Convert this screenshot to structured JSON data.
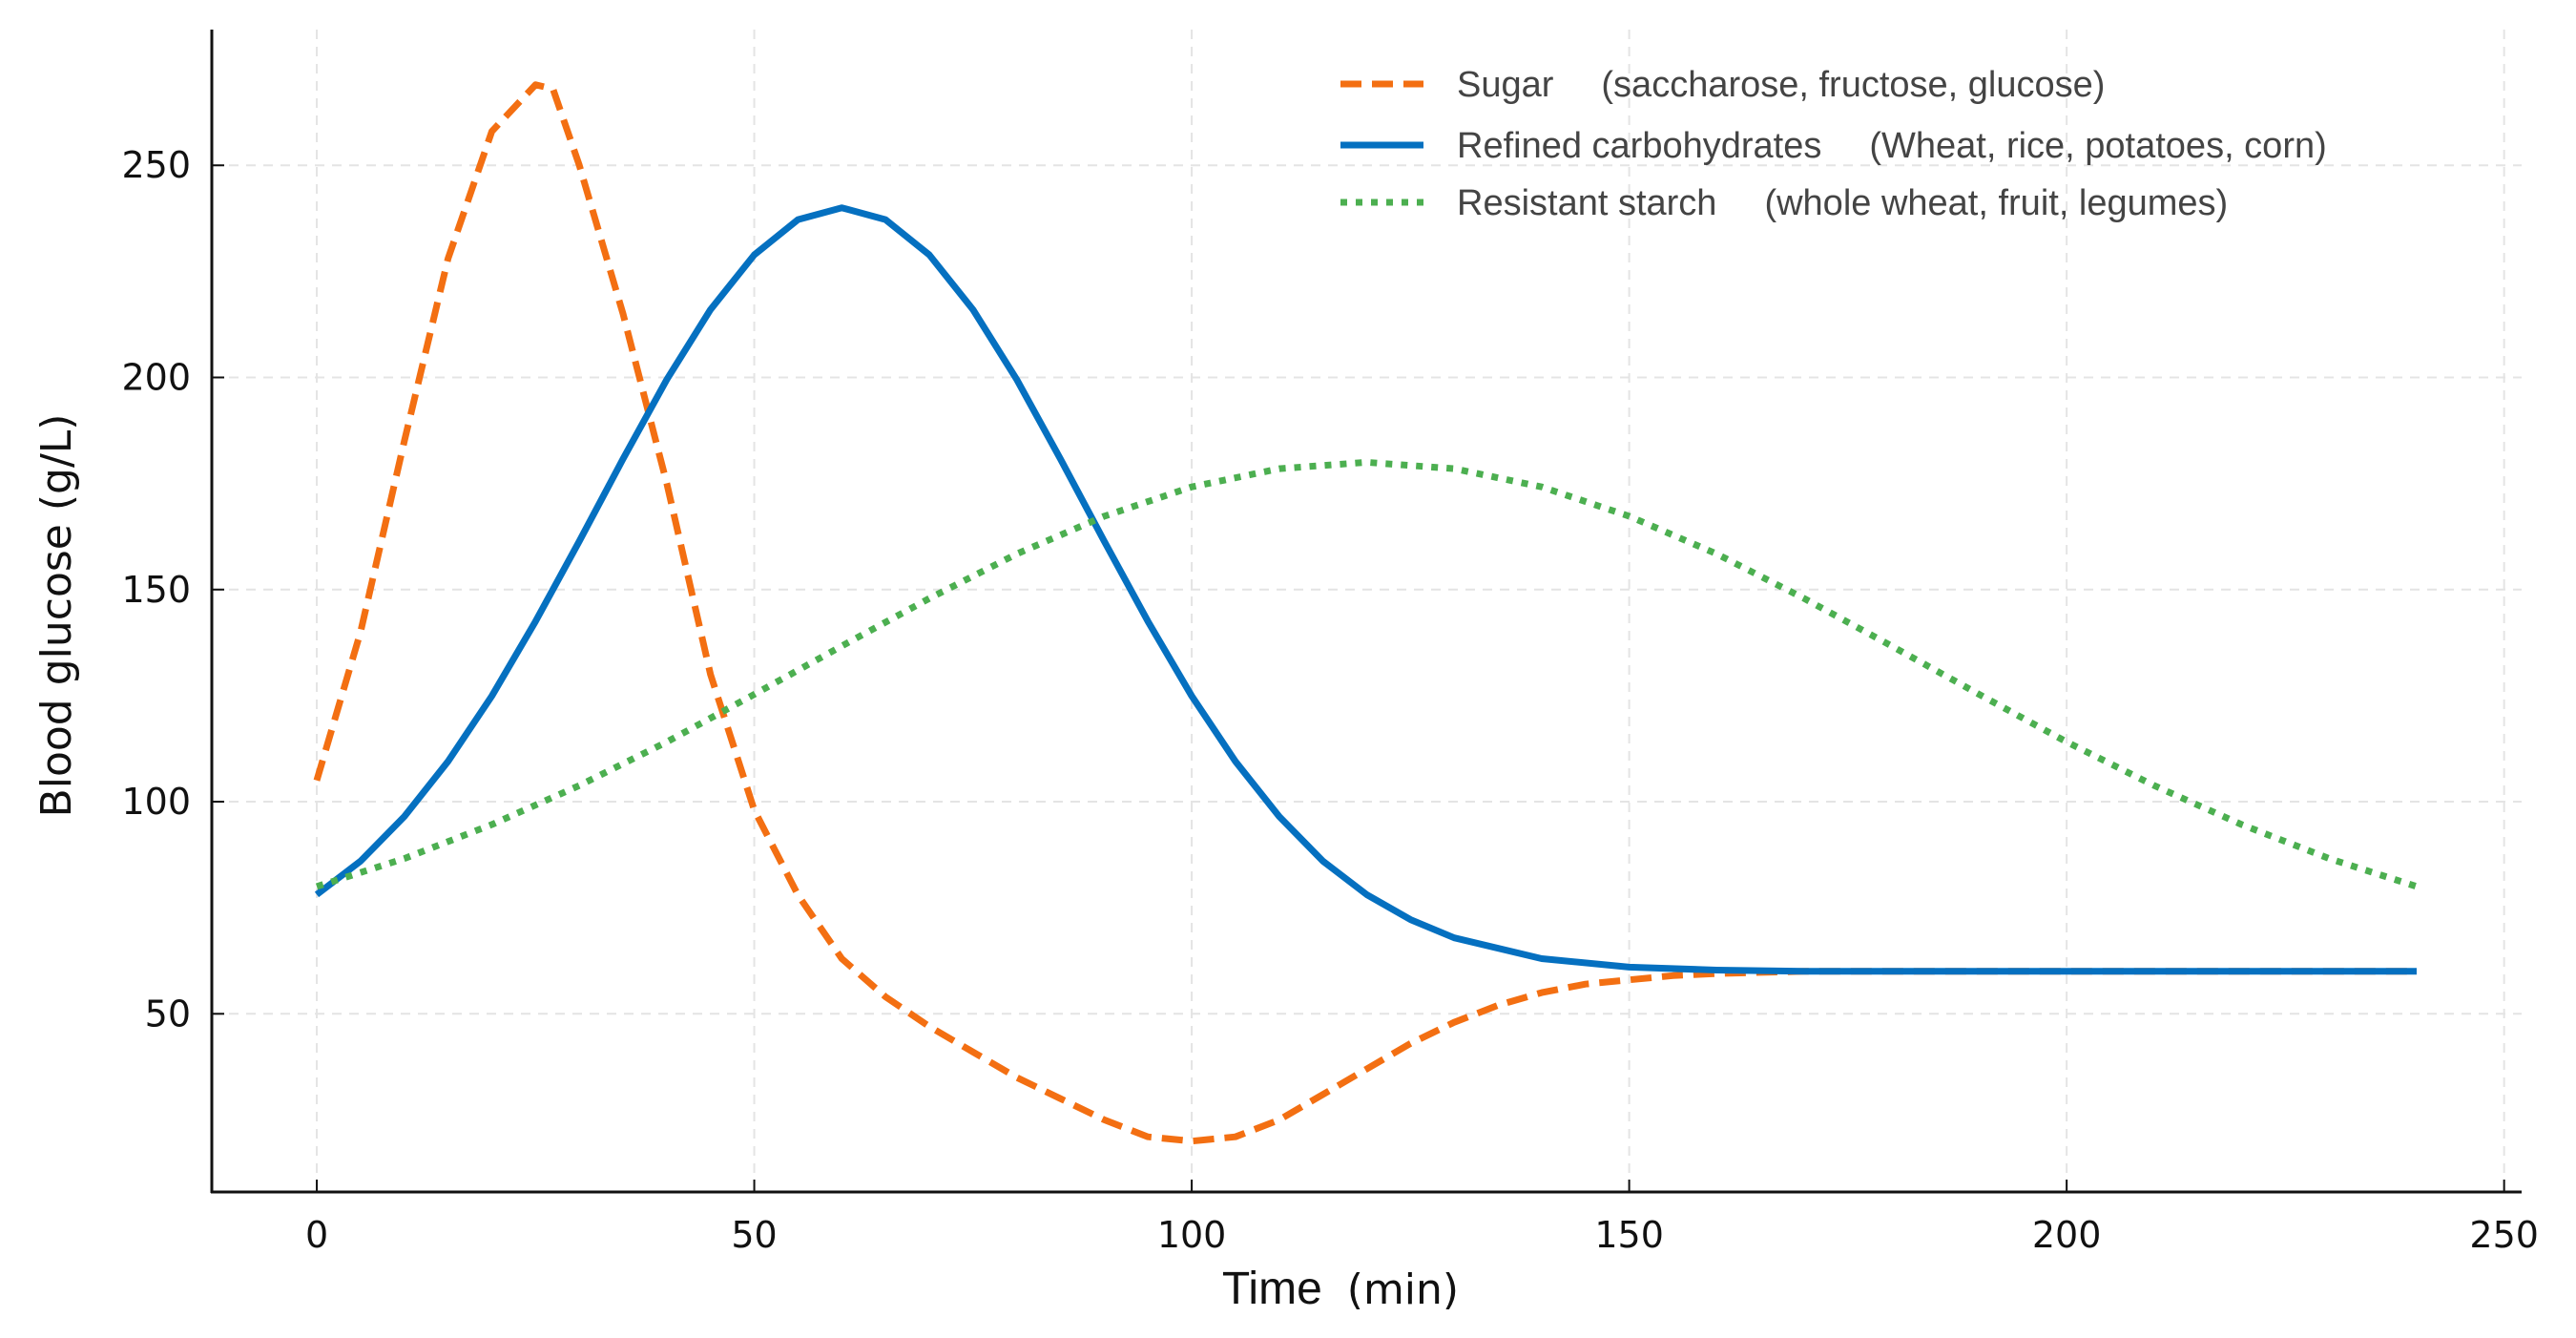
{
  "chart_data": {
    "type": "line",
    "title": "",
    "xlabel": "Time",
    "xlabel_unit": "(min)",
    "ylabel": "Blood glucose (g/L)",
    "xlim": [
      -12,
      252
    ],
    "ylim": [
      8,
      282
    ],
    "xticks": [
      0,
      50,
      100,
      150,
      200,
      250
    ],
    "yticks": [
      50,
      100,
      150,
      200,
      250
    ],
    "grid": true,
    "legend_position": "top-right",
    "series": [
      {
        "name": "Sugar",
        "note": "(saccharose, fructose, glucose)",
        "color": "#f36f12",
        "style": "dashed",
        "x": [
          0,
          5,
          10,
          15,
          20,
          25,
          27,
          30,
          35,
          40,
          45,
          50,
          55,
          60,
          65,
          70,
          75,
          80,
          85,
          90,
          95,
          100,
          105,
          110,
          115,
          120,
          125,
          130,
          135,
          140,
          145,
          150,
          155,
          160,
          170,
          180,
          190,
          200,
          210,
          220,
          230,
          240
        ],
        "y": [
          105,
          140,
          185,
          228,
          258,
          269,
          268,
          250,
          215,
          175,
          130,
          98,
          78,
          63,
          54,
          47,
          41,
          35,
          30,
          25,
          21,
          20,
          21,
          25,
          31,
          37,
          43,
          48,
          52,
          55,
          57,
          58,
          59,
          59.5,
          60,
          60,
          60,
          60,
          60,
          60,
          60,
          60
        ]
      },
      {
        "name": "Refined carbohydrates",
        "note": "(Wheat, rice, potatoes, corn)",
        "color": "#0570c0",
        "style": "solid",
        "x": [
          0,
          5,
          10,
          15,
          20,
          25,
          30,
          35,
          40,
          45,
          50,
          55,
          60,
          65,
          70,
          75,
          80,
          85,
          90,
          95,
          100,
          105,
          110,
          115,
          120,
          125,
          130,
          140,
          150,
          160,
          170,
          180,
          190,
          200,
          210,
          220,
          230,
          240
        ],
        "y": [
          78.1,
          86,
          96.5,
          109.5,
          124.9,
          142.5,
          161.4,
          180.8,
          199.5,
          216,
          228.9,
          237.2,
          240,
          237.2,
          228.9,
          216,
          199.5,
          180.8,
          161.4,
          142.5,
          124.9,
          109.5,
          96.5,
          86,
          78.1,
          72.2,
          67.9,
          63,
          61,
          60.3,
          60,
          60,
          60,
          60,
          60,
          60,
          60,
          60
        ]
      },
      {
        "name": "Resistant starch",
        "note": "(whole wheat, fruit, legumes)",
        "color": "#4caf50",
        "style": "dotted",
        "x": [
          0,
          10,
          20,
          30,
          40,
          50,
          60,
          70,
          80,
          90,
          100,
          110,
          120,
          130,
          140,
          150,
          160,
          170,
          180,
          190,
          200,
          210,
          220,
          230,
          240
        ],
        "y": [
          80,
          86.6,
          94.6,
          103.8,
          114.1,
          125.3,
          136.7,
          147.9,
          158.4,
          167.3,
          174.2,
          178.5,
          180,
          178.5,
          174.2,
          167.3,
          158.4,
          147.9,
          136.7,
          125.3,
          114.1,
          103.8,
          94.6,
          86.6,
          80
        ]
      }
    ]
  }
}
